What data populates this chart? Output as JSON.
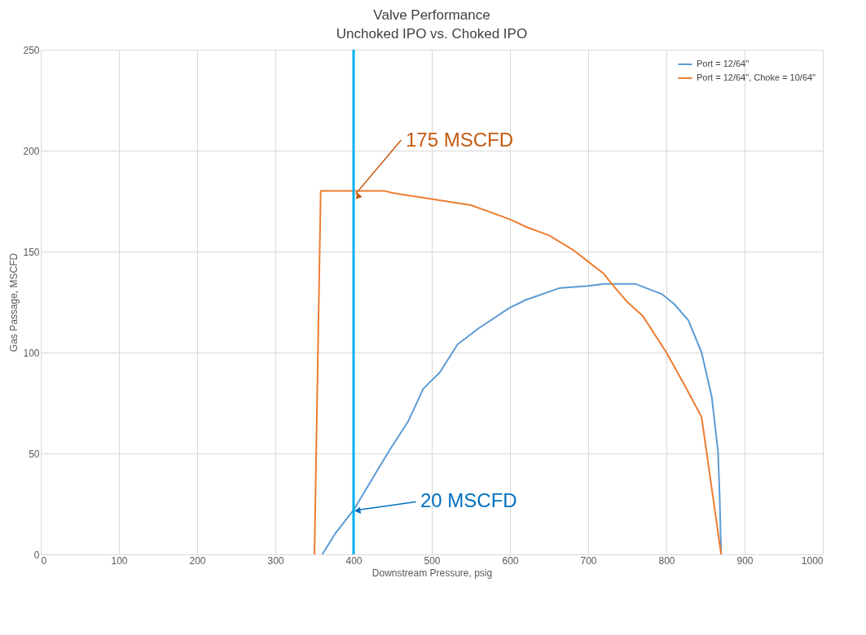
{
  "chart_data": {
    "type": "line",
    "title": "Valve Performance",
    "subtitle": "Unchoked IPO vs. Choked IPO",
    "xlabel": "Downstream Pressure, psig",
    "ylabel": "Gas Passage, MSCFD",
    "xlim": [
      0,
      1000
    ],
    "xticks": [
      0,
      100,
      200,
      300,
      400,
      500,
      600,
      700,
      800,
      900,
      1000
    ],
    "ylim": [
      0,
      250
    ],
    "yticks": [
      0,
      50,
      100,
      150,
      200,
      250
    ],
    "grid": true,
    "legend": "right",
    "marker": "none",
    "line_style": "solid",
    "series": [
      {
        "name": "Port = 12/64\"",
        "color": "#5b9bd5",
        "x": [
          360,
          376,
          400,
          445,
          470,
          489,
          510,
          533,
          560,
          599,
          620,
          664,
          700,
          720,
          760,
          794,
          810,
          828,
          845,
          858,
          866,
          868,
          870
        ],
        "values": [
          0,
          10,
          22,
          51,
          66,
          82,
          90,
          104,
          112,
          122,
          126,
          132,
          133,
          134,
          134,
          129,
          124,
          116,
          100,
          78,
          51,
          30,
          0
        ]
      },
      {
        "name": "Port = 12/64\", Choke = 10/64\"",
        "color": "#ed7d31",
        "x": [
          350,
          358,
          362,
          440,
          450,
          500,
          550,
          600,
          622,
          650,
          680,
          700,
          720,
          730,
          750,
          770,
          800,
          823,
          845,
          870
        ],
        "values": [
          0,
          180,
          180,
          180,
          179,
          176,
          173,
          166,
          162,
          158,
          151,
          145,
          139,
          134,
          125,
          118,
          100,
          84,
          68,
          0
        ]
      }
    ],
    "ref_lines": [
      {
        "axis": "x",
        "value": 400,
        "color": "#00b0f0"
      }
    ],
    "annotations": [
      {
        "text": "175 MSCFD",
        "x": 400,
        "y": 180
      },
      {
        "text": "20 MSCFD",
        "x": 400,
        "y": 22
      }
    ]
  }
}
